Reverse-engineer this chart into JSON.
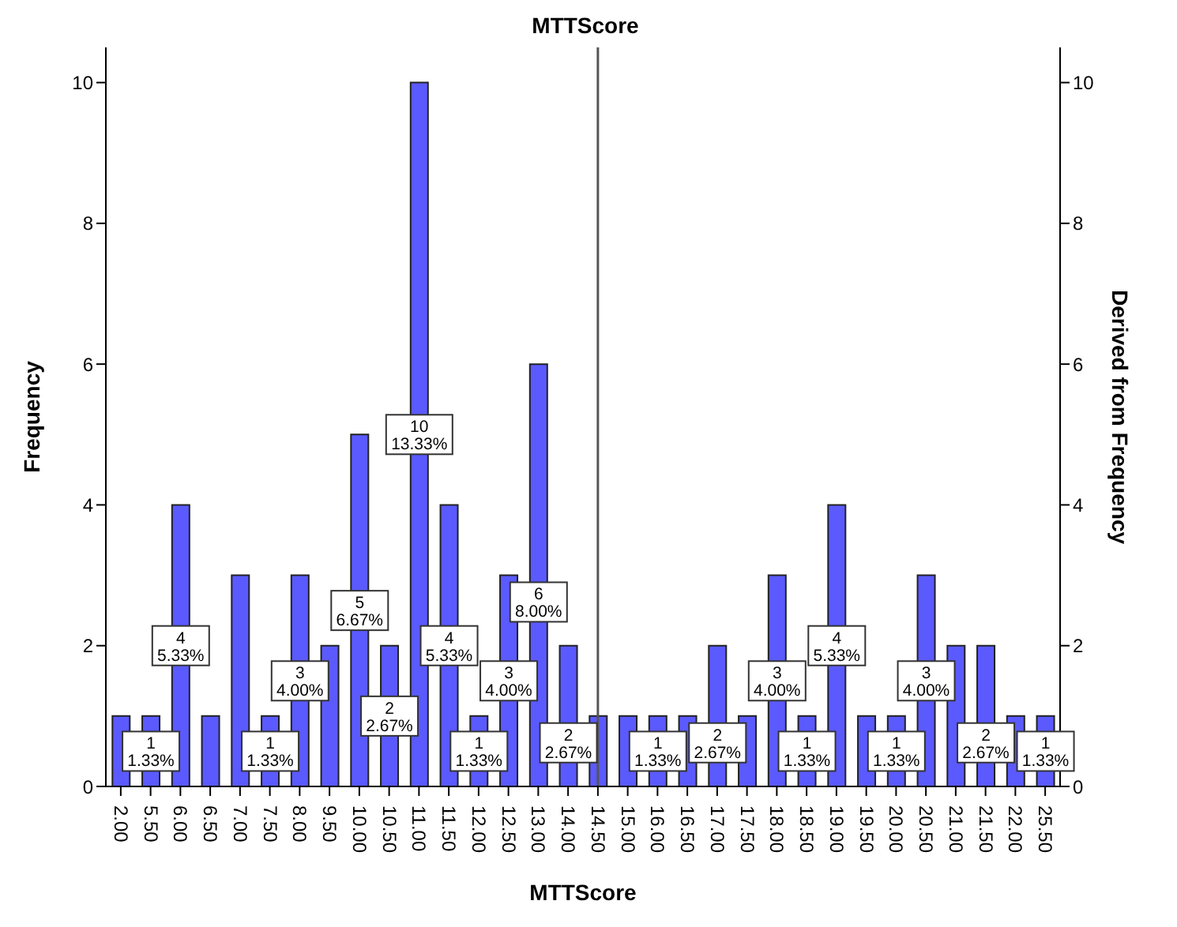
{
  "chart_data": {
    "type": "bar",
    "title": "MTTScore",
    "xlabel": "MTTScore",
    "ylabel": "Frequency",
    "y2label": "Derived from Frequency",
    "categories": [
      "2.00",
      "5.50",
      "6.00",
      "6.50",
      "7.00",
      "7.50",
      "8.00",
      "9.50",
      "10.00",
      "10.50",
      "11.00",
      "11.50",
      "12.00",
      "12.50",
      "13.00",
      "14.00",
      "14.50",
      "15.00",
      "16.00",
      "16.50",
      "17.00",
      "17.50",
      "18.00",
      "18.50",
      "19.00",
      "19.50",
      "20.00",
      "20.50",
      "21.00",
      "21.50",
      "22.00",
      "25.50"
    ],
    "values": [
      1,
      1,
      4,
      1,
      3,
      1,
      3,
      2,
      5,
      2,
      10,
      4,
      1,
      3,
      6,
      2,
      1,
      1,
      1,
      1,
      2,
      1,
      3,
      1,
      4,
      1,
      1,
      3,
      2,
      2,
      1,
      1
    ],
    "value_labels": [
      null,
      "1\n1.33%",
      "4\n5.33%",
      null,
      null,
      "1\n1.33%",
      "3\n4.00%",
      null,
      "5\n6.67%",
      "2\n2.67%",
      "10\n13.33%",
      "4\n5.33%",
      "1\n1.33%",
      "3\n4.00%",
      "6\n8.00%",
      "2\n2.67%",
      null,
      null,
      "1\n1.33%",
      null,
      "2\n2.67%",
      null,
      "3\n4.00%",
      "1\n1.33%",
      "4\n5.33%",
      null,
      "1\n1.33%",
      "3\n4.00%",
      null,
      "2\n2.67%",
      null,
      "1\n1.33%"
    ],
    "color": "#5a5aff",
    "ylim": [
      0,
      10.5
    ],
    "yticks": [
      0,
      2,
      4,
      6,
      8,
      10
    ],
    "y2lim": [
      0,
      10.5
    ],
    "y2ticks": [
      0,
      2,
      4,
      6,
      8,
      10
    ],
    "ref_lines": [
      {
        "axis": "x",
        "value": "14.50",
        "color": "#555555"
      }
    ]
  }
}
